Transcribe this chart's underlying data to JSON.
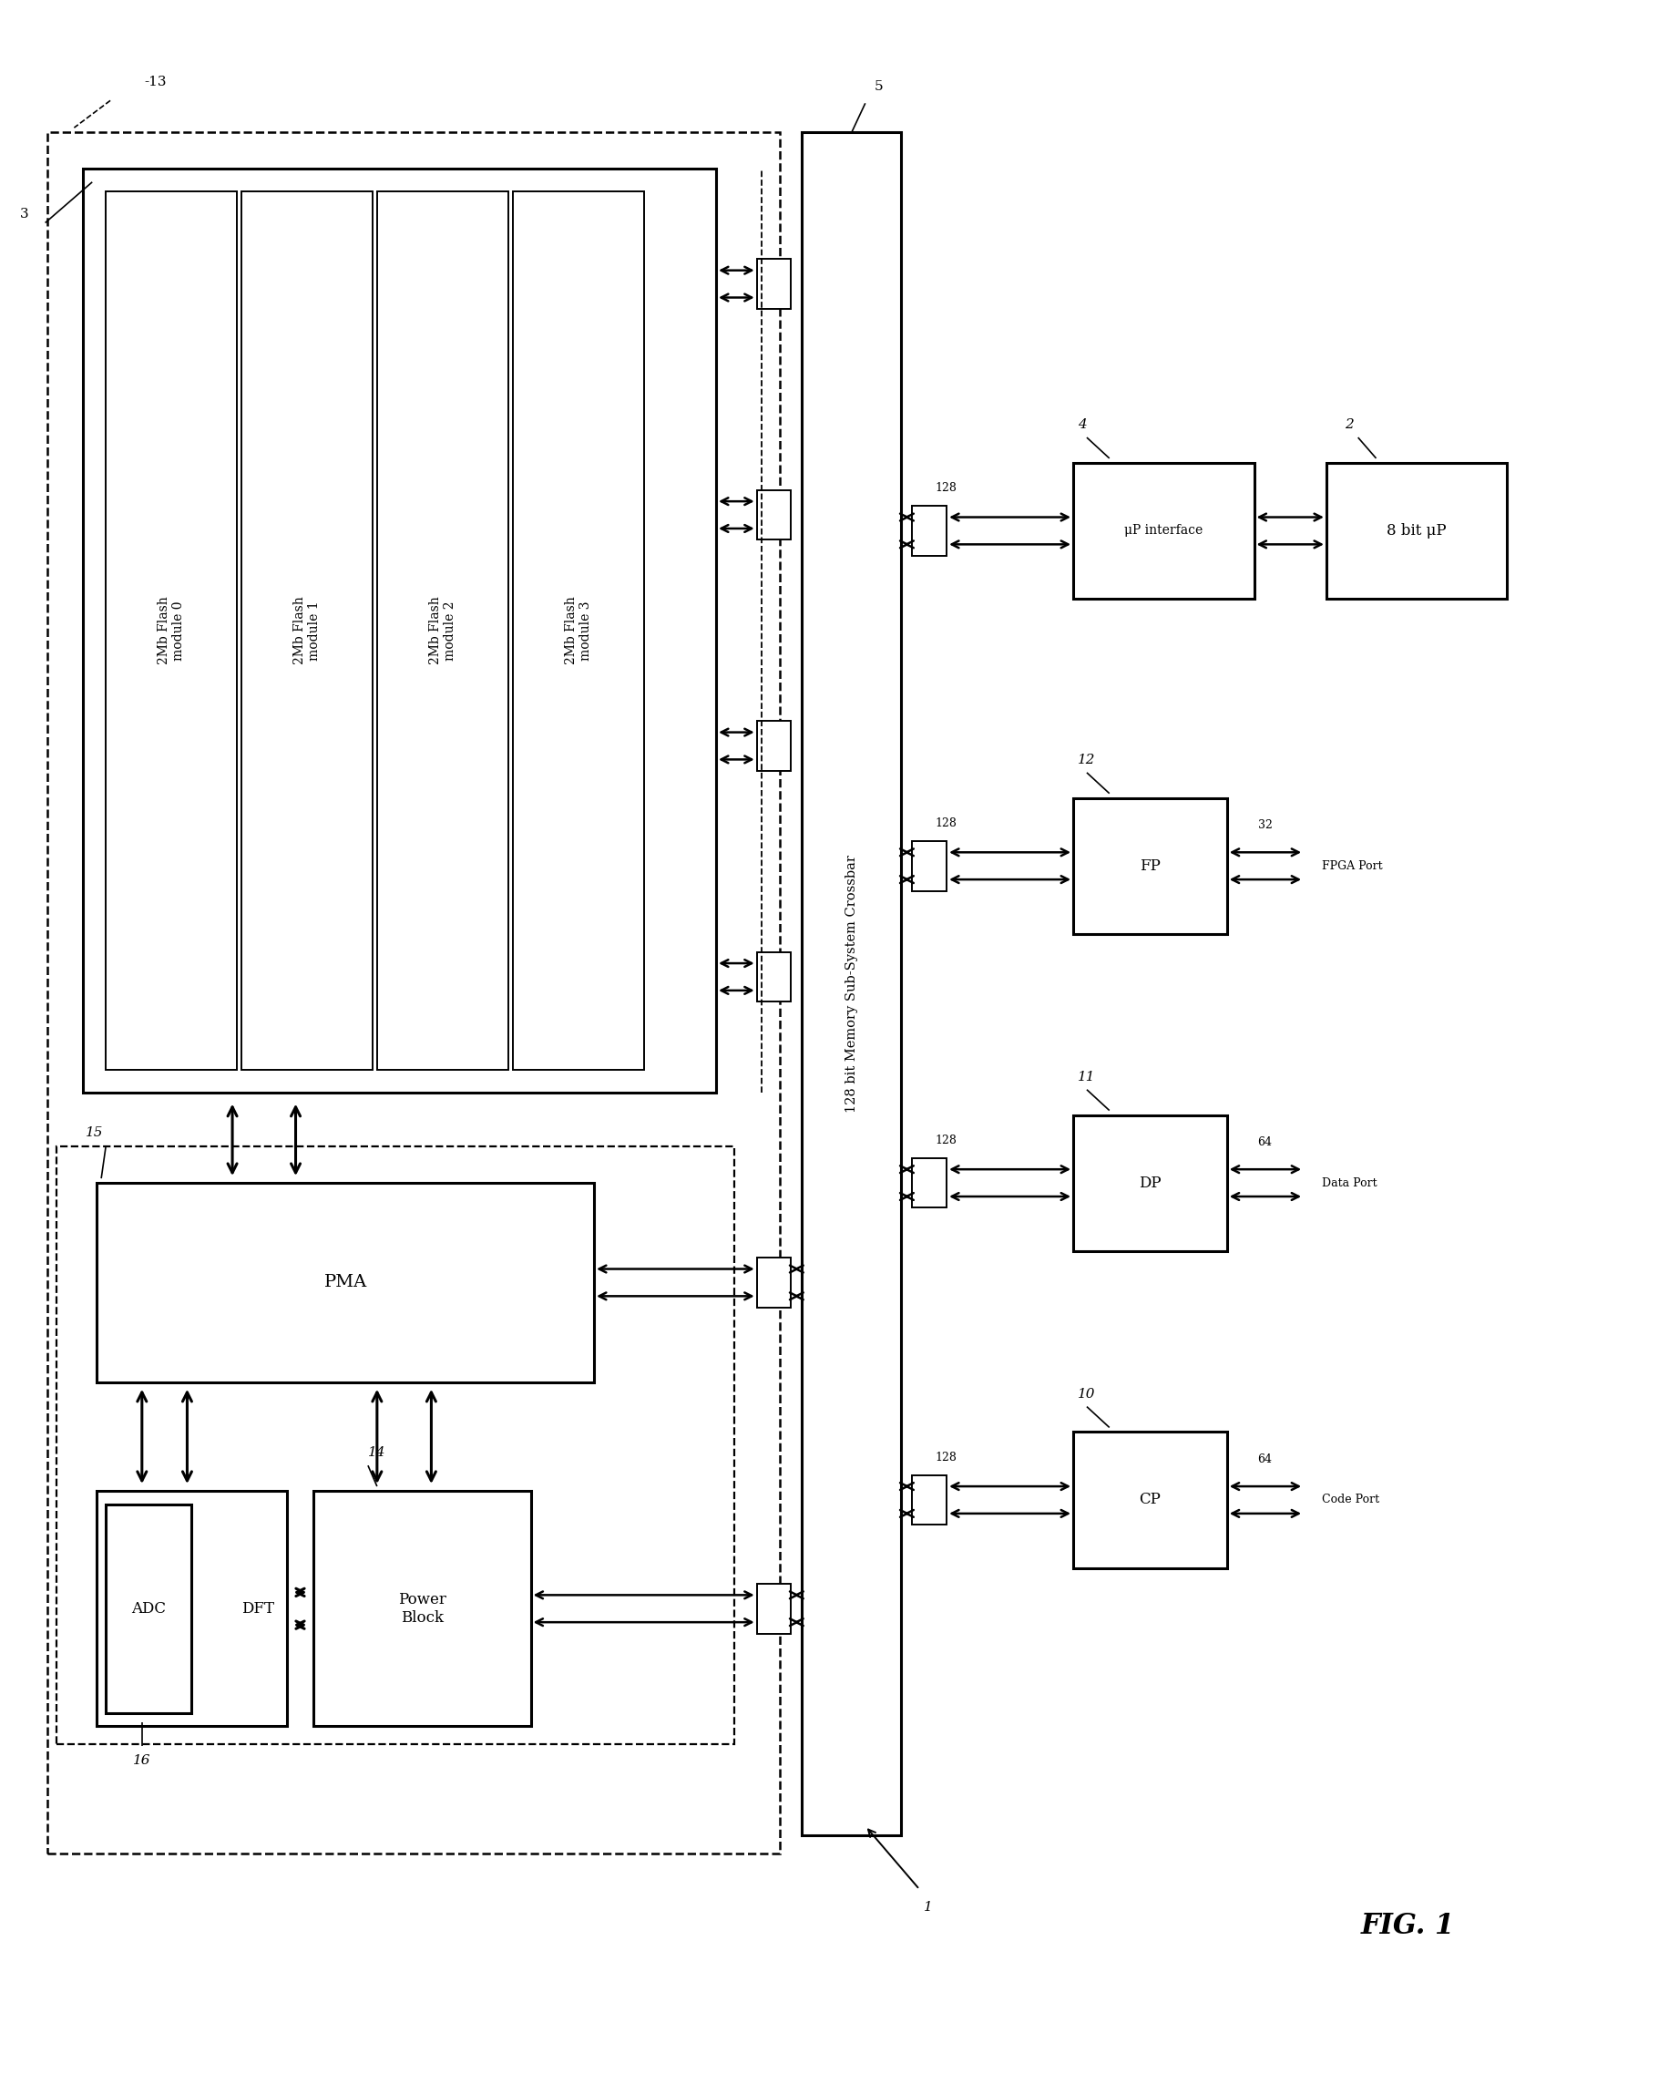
{
  "bg": "#ffffff",
  "crossbar_text": "128 bit Memory Sub-System Crossbar",
  "flash_labels": [
    "2Mb Flash\nmodule 3",
    "2Mb Flash\nmodule 2",
    "2Mb Flash\nmodule 1",
    "2Mb Flash\nmodule 0"
  ],
  "port_labels": [
    "CP",
    "DP",
    "FP",
    "μP interface"
  ],
  "port_bus": [
    "128",
    "128",
    "128",
    "128"
  ],
  "port_right_bits": [
    "64",
    "64",
    "32",
    ""
  ],
  "port_names": [
    "Code Port",
    "Data Port",
    "FPGA Port",
    ""
  ],
  "port_refs": [
    "10",
    "11",
    "12",
    "4"
  ],
  "up_label": "8 bit μP",
  "up_ref": "2",
  "pma_label": "PMA",
  "dft_label": "DFT",
  "adc_label": "ADC",
  "pb_label": "Power\nBlock",
  "fig_label": "FIG. 1"
}
